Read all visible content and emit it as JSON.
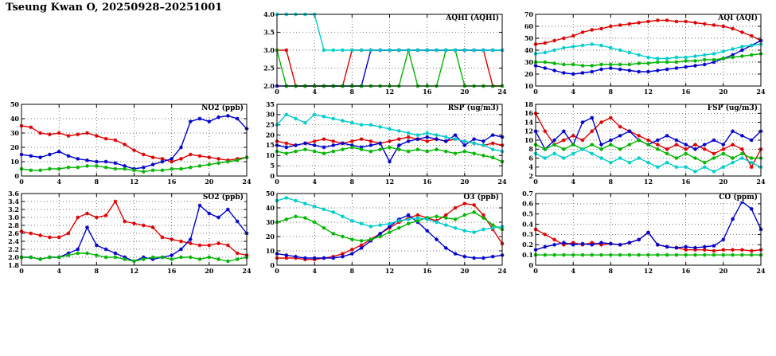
{
  "page_title": "Tseung Kwan O, 20250928–20251001",
  "colors": {
    "red": "#dd0000",
    "blue": "#0000cc",
    "green": "#00b400",
    "cyan": "#00cccc"
  },
  "chart_data": [
    {
      "type": "line",
      "title": "AQHI (AQHI)",
      "xlim": [
        0,
        24
      ],
      "xticks": [
        0,
        4,
        8,
        12,
        16,
        20,
        24
      ],
      "ylim": [
        2.0,
        4.0
      ],
      "yticks": [
        2.0,
        2.5,
        3.0,
        3.5,
        4.0
      ],
      "ylabels": [
        "2.0",
        "2.5",
        "3.0",
        "3.5",
        "4.0"
      ],
      "series": [
        {
          "name": "red",
          "color": "red",
          "values": [
            3,
            3,
            2,
            2,
            2,
            2,
            2,
            2,
            3,
            3,
            3,
            3,
            3,
            3,
            3,
            3,
            3,
            3,
            3,
            3,
            3,
            3,
            3,
            2,
            2
          ]
        },
        {
          "name": "blue",
          "color": "blue",
          "values": [
            2,
            2,
            2,
            2,
            2,
            2,
            2,
            2,
            2,
            2,
            3,
            3,
            3,
            3,
            3,
            3,
            3,
            3,
            3,
            3,
            3,
            3,
            3,
            3,
            3
          ]
        },
        {
          "name": "green",
          "color": "green",
          "values": [
            3,
            2,
            2,
            2,
            2,
            2,
            2,
            2,
            2,
            2,
            2,
            2,
            2,
            2,
            3,
            2,
            2,
            2,
            3,
            3,
            2,
            2,
            2,
            2,
            2
          ]
        },
        {
          "name": "cyan",
          "color": "cyan",
          "values": [
            4,
            4,
            4,
            4,
            4,
            3,
            3,
            3,
            3,
            3,
            3,
            3,
            3,
            3,
            3,
            3,
            3,
            3,
            3,
            3,
            3,
            3,
            3,
            3,
            3
          ]
        }
      ]
    },
    {
      "type": "line",
      "title": "AQI (AQI)",
      "xlim": [
        0,
        24
      ],
      "xticks": [
        0,
        4,
        8,
        12,
        16,
        20,
        24
      ],
      "ylim": [
        10,
        70
      ],
      "yticks": [
        10,
        20,
        30,
        40,
        50,
        60,
        70
      ],
      "ylabels": [
        "10",
        "20",
        "30",
        "40",
        "50",
        "60",
        "70"
      ],
      "series": [
        {
          "name": "red",
          "color": "red",
          "values": [
            45,
            46,
            48,
            50,
            52,
            55,
            57,
            58,
            60,
            61,
            62,
            63,
            64,
            65,
            65,
            64,
            64,
            63,
            62,
            61,
            60,
            58,
            55,
            52,
            48
          ]
        },
        {
          "name": "blue",
          "color": "blue",
          "values": [
            27,
            25,
            23,
            21,
            20,
            21,
            22,
            24,
            25,
            24,
            23,
            22,
            22,
            23,
            24,
            25,
            26,
            27,
            28,
            30,
            33,
            36,
            40,
            44,
            48
          ]
        },
        {
          "name": "green",
          "color": "green",
          "values": [
            30,
            30,
            29,
            28,
            28,
            27,
            27,
            28,
            28,
            28,
            28,
            29,
            29,
            30,
            30,
            30,
            31,
            31,
            32,
            32,
            33,
            34,
            35,
            36,
            37
          ]
        },
        {
          "name": "cyan",
          "color": "cyan",
          "values": [
            37,
            38,
            40,
            42,
            43,
            44,
            45,
            44,
            42,
            40,
            38,
            36,
            34,
            33,
            33,
            34,
            34,
            35,
            36,
            37,
            39,
            41,
            43,
            44,
            45
          ]
        }
      ]
    },
    {
      "type": "line",
      "title": "NO2 (ppb)",
      "xlim": [
        0,
        24
      ],
      "xticks": [
        0,
        4,
        8,
        12,
        16,
        20,
        24
      ],
      "ylim": [
        0,
        50
      ],
      "yticks": [
        0,
        10,
        20,
        30,
        40,
        50
      ],
      "ylabels": [
        "0",
        "10",
        "20",
        "30",
        "40",
        "50"
      ],
      "series": [
        {
          "name": "red",
          "color": "red",
          "values": [
            35,
            34,
            30,
            29,
            30,
            28,
            29,
            30,
            28,
            26,
            25,
            22,
            18,
            15,
            13,
            12,
            10,
            12,
            15,
            14,
            13,
            12,
            11,
            12,
            13
          ]
        },
        {
          "name": "blue",
          "color": "blue",
          "values": [
            15,
            14,
            13,
            15,
            17,
            14,
            12,
            11,
            10,
            10,
            9,
            7,
            5,
            6,
            8,
            10,
            12,
            20,
            38,
            40,
            38,
            41,
            42,
            40,
            33
          ]
        },
        {
          "name": "green",
          "color": "green",
          "values": [
            5,
            4,
            4,
            5,
            5,
            6,
            6,
            7,
            7,
            6,
            5,
            5,
            4,
            3,
            4,
            4,
            5,
            5,
            6,
            7,
            8,
            9,
            10,
            11,
            13
          ]
        }
      ]
    },
    {
      "type": "line",
      "title": "RSP (ug/m3)",
      "xlim": [
        0,
        24
      ],
      "xticks": [
        0,
        4,
        8,
        12,
        16,
        20,
        24
      ],
      "ylim": [
        0,
        35
      ],
      "yticks": [
        0,
        5,
        10,
        15,
        20,
        25,
        30,
        35
      ],
      "ylabels": [
        "0",
        "5",
        "10",
        "15",
        "20",
        "25",
        "30",
        "35"
      ],
      "series": [
        {
          "name": "red",
          "color": "red",
          "values": [
            17,
            16,
            15,
            16,
            17,
            18,
            17,
            16,
            17,
            18,
            17,
            16,
            17,
            18,
            19,
            18,
            17,
            18,
            17,
            18,
            17,
            16,
            15,
            16,
            15
          ]
        },
        {
          "name": "blue",
          "color": "blue",
          "values": [
            15,
            14,
            15,
            16,
            15,
            14,
            15,
            16,
            15,
            14,
            15,
            16,
            7,
            15,
            17,
            18,
            19,
            18,
            17,
            20,
            15,
            18,
            17,
            20,
            19
          ]
        },
        {
          "name": "green",
          "color": "green",
          "values": [
            12,
            11,
            12,
            13,
            12,
            11,
            12,
            13,
            14,
            13,
            12,
            13,
            14,
            13,
            12,
            13,
            12,
            13,
            12,
            11,
            12,
            11,
            10,
            9,
            7
          ]
        },
        {
          "name": "cyan",
          "color": "cyan",
          "values": [
            25,
            30,
            28,
            26,
            30,
            29,
            28,
            27,
            26,
            25,
            25,
            24,
            23,
            22,
            21,
            20,
            21,
            20,
            19,
            18,
            17,
            16,
            15,
            13,
            12
          ]
        }
      ]
    },
    {
      "type": "line",
      "title": "FSP (ug/m3)",
      "xlim": [
        0,
        24
      ],
      "xticks": [
        0,
        4,
        8,
        12,
        16,
        20,
        24
      ],
      "ylim": [
        2,
        18
      ],
      "yticks": [
        2,
        4,
        6,
        8,
        10,
        12,
        14,
        16,
        18
      ],
      "ylabels": [
        "2",
        "4",
        "6",
        "8",
        "10",
        "12",
        "14",
        "16",
        "18"
      ],
      "series": [
        {
          "name": "red",
          "color": "red",
          "values": [
            16,
            12,
            9,
            10,
            11,
            10,
            12,
            14,
            15,
            13,
            12,
            11,
            10,
            9,
            8,
            9,
            8,
            9,
            8,
            7,
            8,
            9,
            8,
            4,
            8
          ]
        },
        {
          "name": "blue",
          "color": "blue",
          "values": [
            12,
            8,
            10,
            12,
            9,
            14,
            15,
            9,
            10,
            11,
            12,
            10,
            9,
            10,
            11,
            10,
            9,
            8,
            9,
            10,
            9,
            12,
            11,
            10,
            12
          ]
        },
        {
          "name": "green",
          "color": "green",
          "values": [
            9,
            8,
            9,
            8,
            9,
            8,
            9,
            8,
            9,
            8,
            9,
            10,
            9,
            8,
            7,
            6,
            7,
            6,
            5,
            6,
            7,
            6,
            7,
            6,
            6
          ]
        },
        {
          "name": "cyan",
          "color": "cyan",
          "values": [
            7,
            6,
            7,
            6,
            7,
            8,
            7,
            6,
            5,
            6,
            5,
            6,
            5,
            4,
            5,
            4,
            4,
            3,
            4,
            3,
            4,
            5,
            6,
            5,
            4
          ]
        }
      ]
    },
    {
      "type": "line",
      "title": "SO2 (ppb)",
      "xlim": [
        0,
        24
      ],
      "xticks": [
        0,
        4,
        8,
        12,
        16,
        20,
        24
      ],
      "ylim": [
        1.8,
        3.6
      ],
      "yticks": [
        1.8,
        2.0,
        2.2,
        2.4,
        2.6,
        2.8,
        3.0,
        3.2,
        3.4,
        3.6
      ],
      "ylabels": [
        "1.8",
        "2.0",
        "2.2",
        "2.4",
        "2.6",
        "2.8",
        "3.0",
        "3.2",
        "3.4",
        "3.6"
      ],
      "series": [
        {
          "name": "red",
          "color": "red",
          "values": [
            2.65,
            2.6,
            2.55,
            2.5,
            2.5,
            2.6,
            3.0,
            3.1,
            3.0,
            3.05,
            3.4,
            2.9,
            2.85,
            2.8,
            2.75,
            2.5,
            2.45,
            2.4,
            2.35,
            2.3,
            2.3,
            2.35,
            2.3,
            2.1,
            2.05
          ]
        },
        {
          "name": "blue",
          "color": "blue",
          "values": [
            2.0,
            2.0,
            1.95,
            2.0,
            2.0,
            2.1,
            2.2,
            2.75,
            2.3,
            2.2,
            2.1,
            2.0,
            1.9,
            2.0,
            1.95,
            2.0,
            2.05,
            2.2,
            2.45,
            3.3,
            3.1,
            3.0,
            3.2,
            2.9,
            2.6
          ]
        },
        {
          "name": "green",
          "color": "green",
          "values": [
            2.0,
            2.0,
            1.95,
            2.0,
            2.0,
            2.05,
            2.1,
            2.1,
            2.05,
            2.0,
            2.0,
            1.95,
            1.9,
            1.95,
            2.0,
            2.0,
            1.95,
            2.0,
            2.0,
            1.95,
            2.0,
            1.95,
            1.9,
            1.95,
            2.0
          ]
        }
      ]
    },
    {
      "type": "line",
      "title": "O3 (ppb)",
      "xlim": [
        0,
        24
      ],
      "xticks": [
        0,
        4,
        8,
        12,
        16,
        20,
        24
      ],
      "ylim": [
        0,
        50
      ],
      "yticks": [
        0,
        10,
        20,
        30,
        40,
        50
      ],
      "ylabels": [
        "0",
        "10",
        "20",
        "30",
        "40",
        "50"
      ],
      "series": [
        {
          "name": "red",
          "color": "red",
          "values": [
            5,
            5,
            5,
            4,
            4,
            5,
            6,
            8,
            11,
            14,
            18,
            22,
            26,
            30,
            33,
            35,
            33,
            31,
            35,
            40,
            43,
            42,
            35,
            25,
            15
          ]
        },
        {
          "name": "blue",
          "color": "blue",
          "values": [
            8,
            7,
            6,
            5,
            5,
            5,
            5,
            6,
            8,
            12,
            17,
            22,
            27,
            32,
            35,
            30,
            24,
            18,
            12,
            8,
            6,
            5,
            5,
            6,
            7
          ]
        },
        {
          "name": "green",
          "color": "green",
          "values": [
            30,
            32,
            34,
            33,
            30,
            26,
            22,
            20,
            18,
            17,
            18,
            20,
            23,
            26,
            29,
            31,
            33,
            34,
            33,
            32,
            35,
            37,
            33,
            28,
            25
          ]
        },
        {
          "name": "cyan",
          "color": "cyan",
          "values": [
            45,
            47,
            45,
            43,
            41,
            39,
            37,
            34,
            31,
            29,
            27,
            28,
            29,
            31,
            32,
            33,
            32,
            30,
            28,
            26,
            24,
            23,
            25,
            26,
            27
          ]
        }
      ]
    },
    {
      "type": "line",
      "title": "CO (ppm)",
      "xlim": [
        0,
        24
      ],
      "xticks": [
        0,
        4,
        8,
        12,
        16,
        20,
        24
      ],
      "ylim": [
        0,
        0.7
      ],
      "yticks": [
        0,
        0.1,
        0.2,
        0.3,
        0.4,
        0.5,
        0.6,
        0.7
      ],
      "ylabels": [
        "0",
        "0.1",
        "0.2",
        "0.3",
        "0.4",
        "0.5",
        "0.6",
        "0.7"
      ],
      "series": [
        {
          "name": "red",
          "color": "red",
          "values": [
            0.35,
            0.3,
            0.25,
            0.2,
            0.22,
            0.2,
            0.22,
            0.2,
            0.21,
            0.2,
            0.22,
            0.25,
            0.32,
            0.2,
            0.18,
            0.17,
            0.15,
            0.15,
            0.15,
            0.14,
            0.15,
            0.15,
            0.15,
            0.14,
            0.15
          ]
        },
        {
          "name": "blue",
          "color": "blue",
          "values": [
            0.15,
            0.18,
            0.2,
            0.22,
            0.2,
            0.21,
            0.2,
            0.22,
            0.21,
            0.2,
            0.22,
            0.25,
            0.32,
            0.2,
            0.18,
            0.17,
            0.18,
            0.17,
            0.18,
            0.19,
            0.25,
            0.45,
            0.62,
            0.55,
            0.35
          ]
        },
        {
          "name": "green",
          "color": "green",
          "values": [
            0.1,
            0.1,
            0.1,
            0.1,
            0.1,
            0.1,
            0.1,
            0.1,
            0.1,
            0.1,
            0.1,
            0.1,
            0.1,
            0.1,
            0.1,
            0.1,
            0.1,
            0.1,
            0.1,
            0.1,
            0.1,
            0.1,
            0.1,
            0.1,
            0.1
          ]
        }
      ]
    }
  ]
}
